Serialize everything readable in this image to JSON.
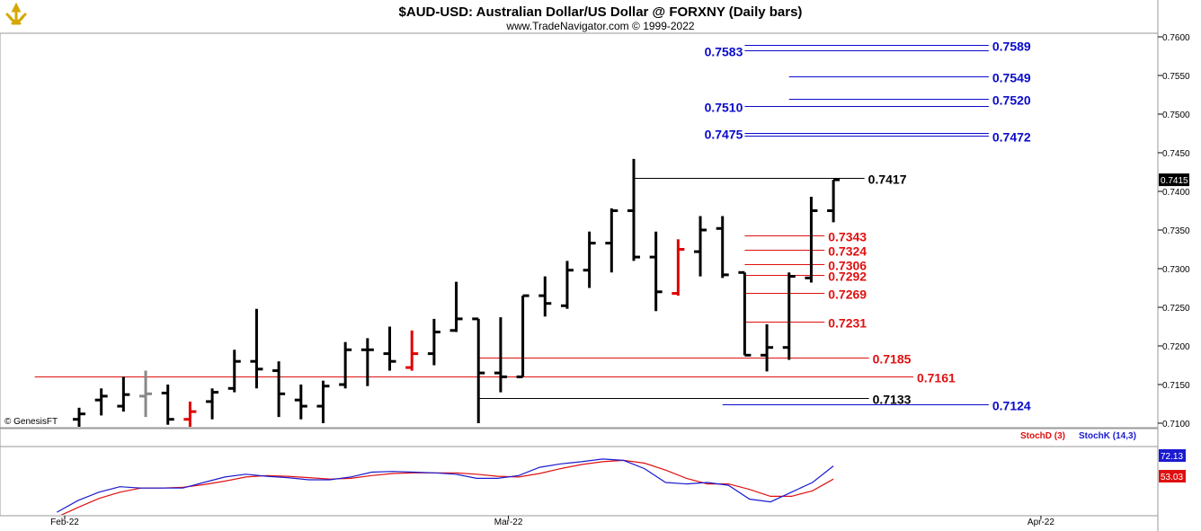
{
  "header": {
    "title": "$AUD-USD:  Australian Dollar/US Dollar @ FORXNY  (Daily bars)",
    "subtitle": "www.TradeNavigator.com © 1999-2022"
  },
  "watermark": "© GenesisFT",
  "colors": {
    "bar": "#000000",
    "bar_highlight": "#e00000",
    "bar_neutral": "#888888",
    "blue_level": "#0a0acc",
    "red_level": "#e01010",
    "black_level": "#000000",
    "stoch_d": "#e01010",
    "stoch_k": "#1a1ad0"
  },
  "chart_data": {
    "type": "ohlc",
    "y_range": [
      0.7095,
      0.7605
    ],
    "y_ticks": [
      "0.7600",
      "0.7550",
      "0.7500",
      "0.7450",
      "0.7400",
      "0.7350",
      "0.7300",
      "0.7250",
      "0.7200",
      "0.7150",
      "0.7100"
    ],
    "x_labels": [
      {
        "label": "Feb-22",
        "index": 0
      },
      {
        "label": "Mar-22",
        "index": 20
      },
      {
        "label": "Apr-22",
        "index": 44
      }
    ],
    "last_price": "0.7415",
    "bars": [
      {
        "i": 0,
        "o": 0.7105,
        "h": 0.712,
        "l": 0.709,
        "c": 0.7112,
        "color": "black"
      },
      {
        "i": 1,
        "o": 0.713,
        "h": 0.7145,
        "l": 0.711,
        "c": 0.7135,
        "color": "black"
      },
      {
        "i": 2,
        "o": 0.7122,
        "h": 0.716,
        "l": 0.7115,
        "c": 0.7137,
        "color": "black"
      },
      {
        "i": 3,
        "o": 0.7135,
        "h": 0.7168,
        "l": 0.7108,
        "c": 0.7138,
        "color": "gray"
      },
      {
        "i": 4,
        "o": 0.7139,
        "h": 0.715,
        "l": 0.7098,
        "c": 0.7105,
        "color": "black"
      },
      {
        "i": 5,
        "o": 0.7105,
        "h": 0.7128,
        "l": 0.7092,
        "c": 0.7115,
        "color": "red"
      },
      {
        "i": 6,
        "o": 0.7128,
        "h": 0.7145,
        "l": 0.7105,
        "c": 0.714,
        "color": "black"
      },
      {
        "i": 7,
        "o": 0.7145,
        "h": 0.7195,
        "l": 0.714,
        "c": 0.718,
        "color": "black"
      },
      {
        "i": 8,
        "o": 0.718,
        "h": 0.7248,
        "l": 0.7145,
        "c": 0.717,
        "color": "black"
      },
      {
        "i": 9,
        "o": 0.7168,
        "h": 0.718,
        "l": 0.7108,
        "c": 0.7138,
        "color": "black"
      },
      {
        "i": 10,
        "o": 0.713,
        "h": 0.715,
        "l": 0.7105,
        "c": 0.7122,
        "color": "black"
      },
      {
        "i": 11,
        "o": 0.7122,
        "h": 0.7155,
        "l": 0.71,
        "c": 0.7148,
        "color": "black"
      },
      {
        "i": 12,
        "o": 0.715,
        "h": 0.7205,
        "l": 0.7145,
        "c": 0.7195,
        "color": "black"
      },
      {
        "i": 13,
        "o": 0.7195,
        "h": 0.721,
        "l": 0.7148,
        "c": 0.7195,
        "color": "black"
      },
      {
        "i": 14,
        "o": 0.719,
        "h": 0.7225,
        "l": 0.7168,
        "c": 0.718,
        "color": "black"
      },
      {
        "i": 15,
        "o": 0.7172,
        "h": 0.722,
        "l": 0.7168,
        "c": 0.719,
        "color": "red"
      },
      {
        "i": 16,
        "o": 0.719,
        "h": 0.7235,
        "l": 0.7175,
        "c": 0.7218,
        "color": "black"
      },
      {
        "i": 17,
        "o": 0.722,
        "h": 0.7283,
        "l": 0.7218,
        "c": 0.7235,
        "color": "black"
      },
      {
        "i": 18,
        "o": 0.7235,
        "h": 0.7235,
        "l": 0.71,
        "c": 0.7165,
        "color": "black"
      },
      {
        "i": 19,
        "o": 0.7165,
        "h": 0.7237,
        "l": 0.714,
        "c": 0.716,
        "color": "black"
      },
      {
        "i": 20,
        "o": 0.716,
        "h": 0.7265,
        "l": 0.716,
        "c": 0.7265,
        "color": "black"
      },
      {
        "i": 21,
        "o": 0.7265,
        "h": 0.729,
        "l": 0.7238,
        "c": 0.7255,
        "color": "black"
      },
      {
        "i": 22,
        "o": 0.7252,
        "h": 0.731,
        "l": 0.7248,
        "c": 0.7298,
        "color": "black"
      },
      {
        "i": 23,
        "o": 0.7298,
        "h": 0.7348,
        "l": 0.7275,
        "c": 0.7333,
        "color": "black"
      },
      {
        "i": 24,
        "o": 0.7333,
        "h": 0.7378,
        "l": 0.7295,
        "c": 0.7375,
        "color": "black"
      },
      {
        "i": 25,
        "o": 0.7375,
        "h": 0.7442,
        "l": 0.731,
        "c": 0.7315,
        "color": "black"
      },
      {
        "i": 26,
        "o": 0.7315,
        "h": 0.7348,
        "l": 0.7245,
        "c": 0.727,
        "color": "black"
      },
      {
        "i": 27,
        "o": 0.7268,
        "h": 0.7338,
        "l": 0.7265,
        "c": 0.7325,
        "color": "red"
      },
      {
        "i": 28,
        "o": 0.7322,
        "h": 0.7368,
        "l": 0.729,
        "c": 0.735,
        "color": "black"
      },
      {
        "i": 29,
        "o": 0.7352,
        "h": 0.7368,
        "l": 0.7288,
        "c": 0.7292,
        "color": "black"
      },
      {
        "i": 30,
        "o": 0.7295,
        "h": 0.7295,
        "l": 0.7188,
        "c": 0.7188,
        "color": "black"
      },
      {
        "i": 31,
        "o": 0.7188,
        "h": 0.7228,
        "l": 0.7167,
        "c": 0.7198,
        "color": "black"
      },
      {
        "i": 32,
        "o": 0.7198,
        "h": 0.7295,
        "l": 0.7182,
        "c": 0.729,
        "color": "black"
      },
      {
        "i": 33,
        "o": 0.7288,
        "h": 0.7393,
        "l": 0.7282,
        "c": 0.7375,
        "color": "black"
      },
      {
        "i": 34,
        "o": 0.7375,
        "h": 0.7415,
        "l": 0.736,
        "c": 0.7415,
        "color": "black"
      }
    ],
    "levels": [
      {
        "price": "0.7589",
        "label": "0.7589",
        "color": "blue",
        "from": 30,
        "to": 41,
        "side": "right"
      },
      {
        "price": "0.7583",
        "label": "0.7583",
        "color": "blue",
        "from": 30,
        "to": 41,
        "side": "left"
      },
      {
        "price": "0.7549",
        "label": "0.7549",
        "color": "blue",
        "from": 32,
        "to": 41,
        "side": "right"
      },
      {
        "price": "0.7520",
        "label": "0.7520",
        "color": "blue",
        "from": 32,
        "to": 41,
        "side": "right"
      },
      {
        "price": "0.7510",
        "label": "0.7510",
        "color": "blue",
        "from": 30,
        "to": 41,
        "side": "left"
      },
      {
        "price": "0.7475",
        "label": "0.7475",
        "color": "blue",
        "from": 30,
        "to": 41,
        "side": "left"
      },
      {
        "price": "0.7472",
        "label": "0.7472",
        "color": "blue",
        "from": 30,
        "to": 41,
        "side": "right"
      },
      {
        "price": "0.7417",
        "label": "0.7417",
        "color": "black",
        "from": 25,
        "to": 35.4,
        "side": "right"
      },
      {
        "price": "0.7343",
        "label": "0.7343",
        "color": "red",
        "from": 30,
        "to": 33.6,
        "side": "right"
      },
      {
        "price": "0.7324",
        "label": "0.7324",
        "color": "red",
        "from": 30,
        "to": 33.6,
        "side": "right"
      },
      {
        "price": "0.7306",
        "label": "0.7306",
        "color": "red",
        "from": 30,
        "to": 33.6,
        "side": "right"
      },
      {
        "price": "0.7292",
        "label": "0.7292",
        "color": "red",
        "from": 30,
        "to": 33.6,
        "side": "right"
      },
      {
        "price": "0.7269",
        "label": "0.7269",
        "color": "red",
        "from": 30,
        "to": 33.6,
        "side": "right"
      },
      {
        "price": "0.7231",
        "label": "0.7231",
        "color": "red",
        "from": 30,
        "to": 33.6,
        "side": "right"
      },
      {
        "price": "0.7185",
        "label": "0.7185",
        "color": "red",
        "from": 18,
        "to": 35.6,
        "side": "right"
      },
      {
        "price": "0.7161",
        "label": "0.7161",
        "color": "red",
        "from": -2,
        "to": 37.6,
        "side": "right"
      },
      {
        "price": "0.7133",
        "label": "0.7133",
        "color": "black",
        "from": 18,
        "to": 35.6,
        "side": "right"
      },
      {
        "price": "0.7124",
        "label": "0.7124",
        "color": "blue",
        "from": 29,
        "to": 41,
        "side": "right"
      }
    ],
    "oscillator": {
      "legend": [
        {
          "name": "StochD (3)",
          "color": "red"
        },
        {
          "name": "StochK (14,3)",
          "color": "blue"
        }
      ],
      "y_range": [
        0,
        100
      ],
      "k_last": "72.13",
      "d_last": "53.03",
      "k": [
        5,
        22,
        34,
        42,
        40,
        40,
        40,
        48,
        56,
        60,
        57,
        55,
        52,
        52,
        56,
        63,
        64,
        63,
        62,
        60,
        54,
        54,
        58,
        70,
        75,
        78,
        82,
        80,
        68,
        48,
        46,
        48,
        44,
        24,
        20,
        34,
        48,
        72
      ],
      "d": [
        -2,
        12,
        25,
        34,
        40,
        40,
        41,
        45,
        50,
        56,
        58,
        57,
        55,
        53,
        54,
        58,
        61,
        62,
        62,
        62,
        60,
        57,
        56,
        61,
        68,
        74,
        78,
        80,
        76,
        66,
        54,
        46,
        46,
        38,
        28,
        28,
        36,
        53
      ]
    }
  }
}
